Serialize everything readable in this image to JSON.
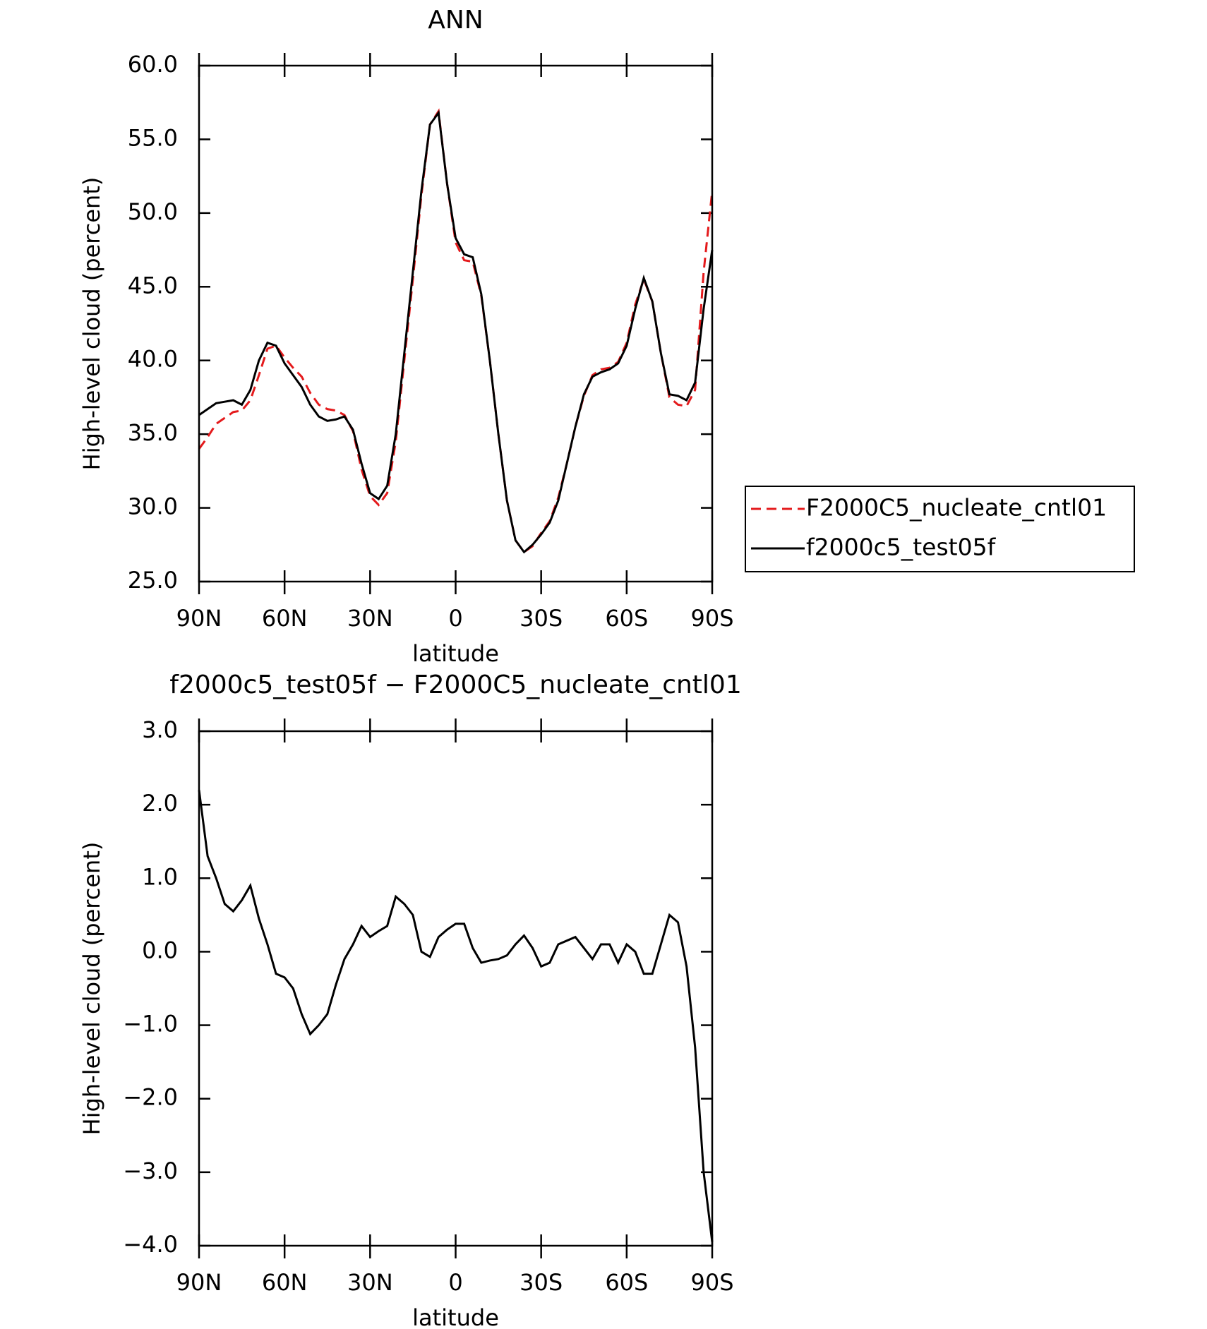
{
  "chart_data": [
    {
      "type": "line",
      "title": "ANN",
      "xlabel": "latitude",
      "ylabel": "High-level cloud (percent)",
      "x": [
        90,
        87,
        84,
        81,
        78,
        75,
        72,
        69,
        66,
        63,
        60,
        57,
        54,
        51,
        48,
        45,
        42,
        39,
        36,
        33,
        30,
        27,
        24,
        21,
        18,
        15,
        12,
        9,
        6,
        3,
        0,
        -3,
        -6,
        -9,
        -12,
        -15,
        -18,
        -21,
        -24,
        -27,
        -30,
        -33,
        -36,
        -39,
        -42,
        -45,
        -48,
        -51,
        -54,
        -57,
        -60,
        -63,
        -66,
        -69,
        -72,
        -75,
        -78,
        -81,
        -84,
        -87,
        -90
      ],
      "series": [
        {
          "name": "F2000C5_nucleate_cntl01",
          "color": "#e41a1c",
          "dash": true,
          "values": [
            34.0,
            34.8,
            35.7,
            36.1,
            36.5,
            36.6,
            37.3,
            39.0,
            40.8,
            41.0,
            40.2,
            39.5,
            38.9,
            37.8,
            37.0,
            36.7,
            36.6,
            36.3,
            35.2,
            32.6,
            30.8,
            30.2,
            31.0,
            34.5,
            40.0,
            45.5,
            51.2,
            56.0,
            56.9,
            52.0,
            48.0,
            46.8,
            46.7,
            44.4,
            40.0,
            35.0,
            30.5,
            27.8,
            27.0,
            27.4,
            28.3,
            29.1,
            30.7,
            33.0,
            35.5,
            37.6,
            39.0,
            39.4,
            39.5,
            39.9,
            41.2,
            43.8,
            45.5,
            44.0,
            40.5,
            37.5,
            37.0,
            36.9,
            38.0,
            46.0,
            51.5
          ]
        },
        {
          "name": "f2000c5_test05f",
          "color": "#000000",
          "dash": false,
          "values": [
            36.3,
            36.7,
            37.1,
            37.2,
            37.3,
            37.0,
            38.0,
            40.0,
            41.2,
            41.0,
            39.8,
            39.0,
            38.2,
            37.0,
            36.2,
            35.9,
            36.0,
            36.2,
            35.3,
            33.0,
            31.0,
            30.6,
            31.5,
            35.0,
            40.5,
            46.0,
            51.5,
            56.0,
            56.8,
            52.0,
            48.3,
            47.2,
            47.0,
            44.5,
            40.0,
            35.0,
            30.5,
            27.8,
            27.0,
            27.5,
            28.2,
            29.0,
            30.5,
            33.0,
            35.5,
            37.7,
            38.9,
            39.2,
            39.4,
            39.8,
            41.0,
            43.5,
            45.6,
            44.0,
            40.5,
            37.7,
            37.6,
            37.3,
            38.5,
            43.5,
            47.5
          ]
        }
      ],
      "xlim": [
        90,
        -90
      ],
      "xticks": [
        {
          "value": 90,
          "label": "90N"
        },
        {
          "value": 60,
          "label": "60N"
        },
        {
          "value": 30,
          "label": "30N"
        },
        0,
        {
          "value": -30,
          "label": "30S"
        },
        {
          "value": -60,
          "label": "60S"
        },
        {
          "value": -90,
          "label": "90S"
        }
      ],
      "ylim": [
        25,
        60
      ],
      "yticks": [
        {
          "value": 25,
          "label": "25.0"
        },
        {
          "value": 30,
          "label": "30.0"
        },
        {
          "value": 35,
          "label": "35.0"
        },
        {
          "value": 40,
          "label": "40.0"
        },
        {
          "value": 45,
          "label": "45.0"
        },
        {
          "value": 50,
          "label": "50.0"
        },
        {
          "value": 55,
          "label": "55.0"
        },
        {
          "value": 60,
          "label": "60.0"
        }
      ],
      "legend": "right"
    },
    {
      "type": "line",
      "title": "f2000c5_test05f − F2000C5_nucleate_cntl01",
      "xlabel": "latitude",
      "ylabel": "High-level cloud (percent)",
      "x": [
        90,
        87,
        84,
        81,
        78,
        75,
        72,
        69,
        66,
        63,
        60,
        57,
        54,
        51,
        48,
        45,
        42,
        39,
        36,
        33,
        30,
        27,
        24,
        21,
        18,
        15,
        12,
        9,
        6,
        3,
        0,
        -3,
        -6,
        -9,
        -12,
        -15,
        -18,
        -21,
        -24,
        -27,
        -30,
        -33,
        -36,
        -39,
        -42,
        -45,
        -48,
        -51,
        -54,
        -57,
        -60,
        -63,
        -66,
        -69,
        -72,
        -75,
        -78,
        -81,
        -84,
        -87,
        -90
      ],
      "series": [
        {
          "color": "#000000",
          "dash": false,
          "values": [
            2.2,
            1.3,
            1.0,
            0.65,
            0.55,
            0.7,
            0.9,
            0.45,
            0.1,
            -0.3,
            -0.35,
            -0.5,
            -0.85,
            -1.12,
            -1.0,
            -0.85,
            -0.45,
            -0.1,
            0.1,
            0.35,
            0.2,
            0.28,
            0.35,
            0.75,
            0.65,
            0.5,
            0.0,
            -0.07,
            0.2,
            0.3,
            0.38,
            0.38,
            0.05,
            -0.15,
            -0.12,
            -0.1,
            -0.05,
            0.1,
            0.22,
            0.05,
            -0.2,
            -0.15,
            0.1,
            0.15,
            0.2,
            0.05,
            -0.1,
            0.1,
            0.1,
            -0.15,
            0.1,
            0.0,
            -0.3,
            -0.3,
            0.1,
            0.5,
            0.4,
            -0.2,
            -1.3,
            -3.0,
            -3.95
          ]
        }
      ],
      "xlim": [
        90,
        -90
      ],
      "xticks": [
        {
          "value": 90,
          "label": "90N"
        },
        {
          "value": 60,
          "label": "60N"
        },
        {
          "value": 30,
          "label": "30N"
        },
        0,
        {
          "value": -30,
          "label": "30S"
        },
        {
          "value": -60,
          "label": "60S"
        },
        {
          "value": -90,
          "label": "90S"
        }
      ],
      "ylim": [
        -4,
        3
      ],
      "yticks": [
        {
          "value": -4,
          "label": "−4.0"
        },
        {
          "value": -3,
          "label": "−3.0"
        },
        {
          "value": -2,
          "label": "−2.0"
        },
        {
          "value": -1,
          "label": "−1.0"
        },
        {
          "value": 0,
          "label": "0.0"
        },
        {
          "value": 1,
          "label": "1.0"
        },
        {
          "value": 2,
          "label": "2.0"
        },
        {
          "value": 3,
          "label": "3.0"
        }
      ]
    }
  ]
}
